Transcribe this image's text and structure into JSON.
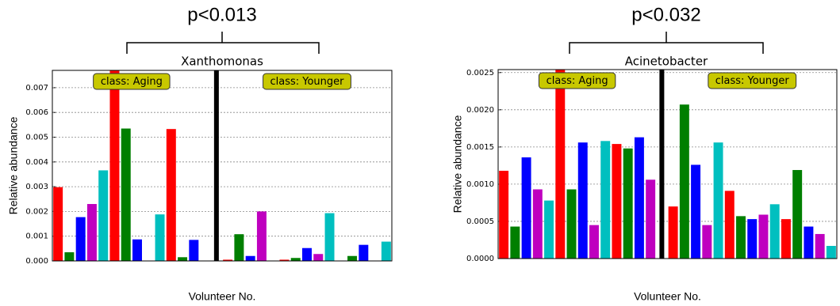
{
  "chart_data": [
    {
      "type": "bar",
      "title": "p<0.013",
      "subtitle": "Xanthomonas",
      "ylabel": "Relative abundance",
      "xlabel": "Volunteer No.",
      "palette": [
        "#ff0000",
        "#007f00",
        "#0000ff",
        "#bf00bf",
        "#00bfbf"
      ],
      "grid": true,
      "ylim": [
        0,
        0.0077
      ],
      "yticks": [
        {
          "value": 0,
          "label": "0.000"
        },
        {
          "value": 0.001,
          "label": "0.001"
        },
        {
          "value": 0.002,
          "label": "0.002"
        },
        {
          "value": 0.003,
          "label": "0.003"
        },
        {
          "value": 0.004,
          "label": "0.004"
        },
        {
          "value": 0.005,
          "label": "0.005"
        },
        {
          "value": 0.006,
          "label": "0.006"
        },
        {
          "value": 0.007,
          "label": "0.007"
        }
      ],
      "groups": [
        {
          "name": "class: Aging",
          "categories": [
            null,
            null,
            null,
            null,
            null,
            null,
            null,
            null,
            null,
            null,
            null,
            null,
            null,
            null
          ],
          "values": [
            0.00298,
            0.00035,
            0.00177,
            0.0023,
            0.00366,
            0.0077,
            0.00535,
            0.00087,
            0,
            0.00188,
            0.00533,
            0.00015,
            0.00085,
            0
          ]
        },
        {
          "name": "class: Younger",
          "categories": [
            null,
            null,
            null,
            null,
            null,
            null,
            null,
            null,
            null,
            null,
            null,
            null,
            null,
            null,
            null
          ],
          "values": [
            5e-05,
            0.00108,
            0.0002,
            0.002,
            0,
            5e-05,
            0.00012,
            0.00052,
            0.00028,
            0.00193,
            0,
            0.0002,
            0.00065,
            0,
            0.00078
          ]
        }
      ]
    },
    {
      "type": "bar",
      "title": "p<0.032",
      "subtitle": "Acinetobacter",
      "ylabel": "Relative abundance",
      "xlabel": "Volunteer No.",
      "palette": [
        "#ff0000",
        "#007f00",
        "#0000ff",
        "#bf00bf",
        "#00bfbf"
      ],
      "grid": true,
      "ylim": [
        0,
        0.00254
      ],
      "yticks": [
        {
          "value": 0,
          "label": "0.0000"
        },
        {
          "value": 0.0005,
          "label": "0.0005"
        },
        {
          "value": 0.001,
          "label": "0.0010"
        },
        {
          "value": 0.0015,
          "label": "0.0015"
        },
        {
          "value": 0.002,
          "label": "0.0020"
        },
        {
          "value": 0.0025,
          "label": "0.0025"
        }
      ],
      "groups": [
        {
          "name": "class: Aging",
          "categories": [
            null,
            null,
            null,
            null,
            null,
            null,
            null,
            null,
            null,
            null,
            null,
            null,
            null,
            null
          ],
          "values": [
            0.00118,
            0.00043,
            0.00136,
            0.00093,
            0.00078,
            0.00254,
            0.00093,
            0.00156,
            0.00045,
            0.00158,
            0.00154,
            0.00148,
            0.00163,
            0.00106
          ]
        },
        {
          "name": "class: Younger",
          "categories": [
            null,
            null,
            null,
            null,
            null,
            null,
            null,
            null,
            null,
            null,
            null,
            null,
            null,
            null,
            null
          ],
          "values": [
            0.0007,
            0.00207,
            0.00126,
            0.00045,
            0.00156,
            0.00091,
            0.00057,
            0.00053,
            0.00059,
            0.00073,
            0.00053,
            0.00119,
            0.00043,
            0.00033,
            0.00017
          ]
        }
      ]
    }
  ]
}
